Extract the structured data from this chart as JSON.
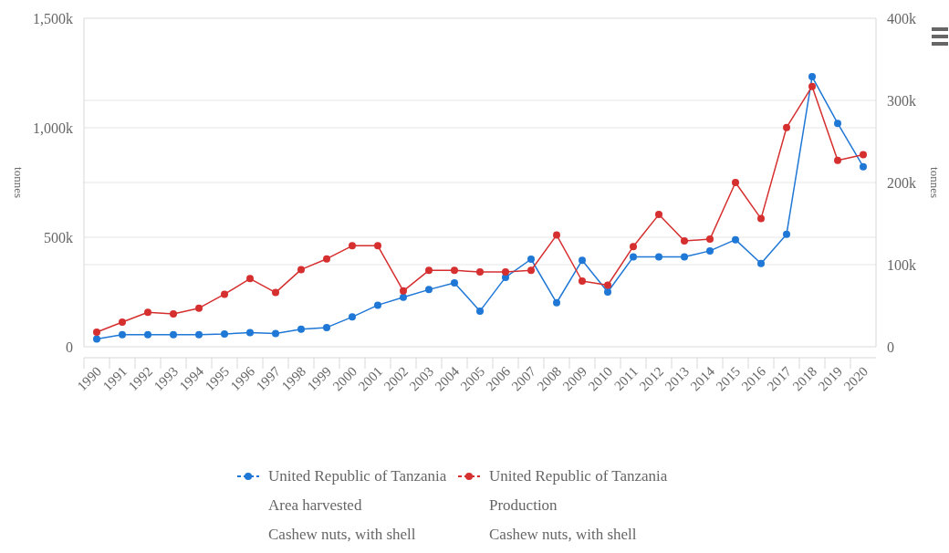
{
  "chart_data": {
    "type": "line",
    "categories": [
      "1990",
      "1991",
      "1992",
      "1993",
      "1994",
      "1995",
      "1996",
      "1997",
      "1998",
      "1999",
      "2000",
      "2001",
      "2002",
      "2003",
      "2004",
      "2005",
      "2006",
      "2007",
      "2008",
      "2009",
      "2010",
      "2011",
      "2012",
      "2013",
      "2014",
      "2015",
      "2016",
      "2017",
      "2018",
      "2019",
      "2020"
    ],
    "series": [
      {
        "name": "United Republic of Tanzania\nArea harvested\nCashew nuts, with shell",
        "color": "#1f77d6",
        "values": [
          35000,
          55000,
          55000,
          55000,
          55000,
          58000,
          65000,
          60000,
          80000,
          88000,
          136000,
          190000,
          226000,
          261000,
          292000,
          163000,
          317000,
          400000,
          201000,
          395000,
          250000,
          410000,
          410000,
          410000,
          438000,
          489000,
          380000,
          514000,
          1233000,
          1020000,
          822000
        ]
      },
      {
        "name": "United Republic of Tanzania\nProduction\nCashew nuts, with shell",
        "color": "#d62f2f",
        "axis": "y2",
        "values": [
          17800,
          30000,
          42000,
          40000,
          47000,
          64000,
          83000,
          66000,
          94000,
          107000,
          123000,
          123000,
          68000,
          93000,
          93000,
          91000,
          91000,
          93000,
          136000,
          80000,
          75000,
          122000,
          161000,
          129000,
          131000,
          200000,
          156000,
          267000,
          317000,
          227000,
          234000
        ]
      }
    ],
    "ylabel": "tonnes",
    "y2label": "tonnes",
    "ylim": [
      0,
      1500000
    ],
    "yticks": [
      {
        "value": 0,
        "label": "0"
      },
      {
        "value": 500000,
        "label": "500k"
      },
      {
        "value": 1000000,
        "label": "1,000k"
      },
      {
        "value": 1500000,
        "label": "1,500k"
      }
    ],
    "y2lim": [
      0,
      400000
    ],
    "y2ticks": [
      {
        "value": 0,
        "label": "0"
      },
      {
        "value": 100000,
        "label": "100k"
      },
      {
        "value": 200000,
        "label": "200k"
      },
      {
        "value": 300000,
        "label": "300k"
      },
      {
        "value": 400000,
        "label": "400k"
      }
    ],
    "grid": true,
    "legend": "bottom",
    "marker": "circle",
    "line_style": "solid"
  }
}
